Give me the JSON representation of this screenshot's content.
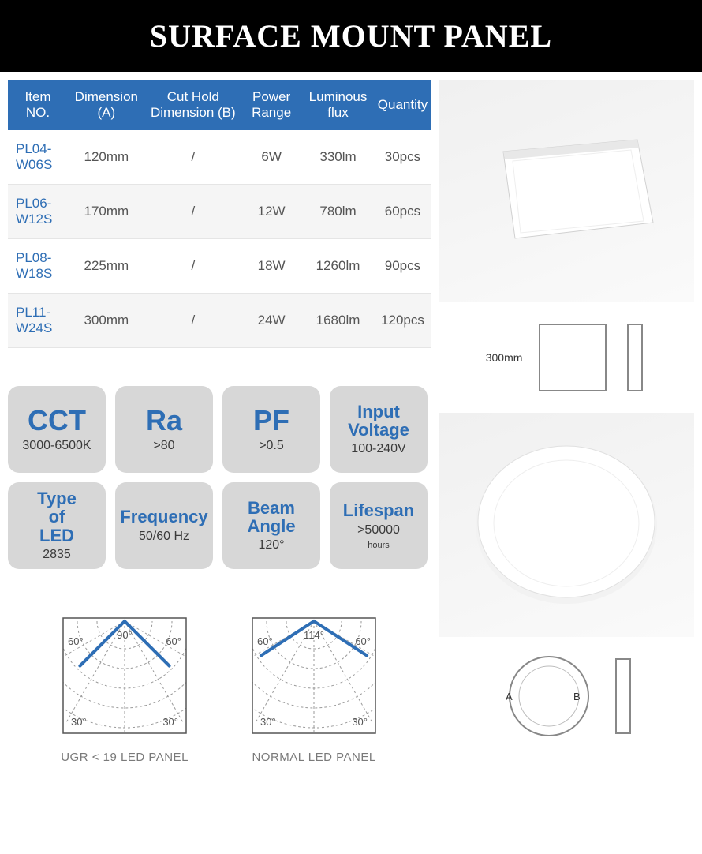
{
  "header": {
    "title": "SURFACE MOUNT PANEL"
  },
  "table": {
    "columns": [
      "Item NO.",
      "Dimension (A)",
      "Cut Hold Dimension (B)",
      "Power Range",
      "Luminous flux",
      "Quantity"
    ],
    "rows": [
      [
        "PL04-W06S",
        "120mm",
        "/",
        "6W",
        "330lm",
        "30pcs"
      ],
      [
        "PL06-W12S",
        "170mm",
        "/",
        "12W",
        "780lm",
        "60pcs"
      ],
      [
        "PL08-W18S",
        "225mm",
        "/",
        "18W",
        "1260lm",
        "90pcs"
      ],
      [
        "PL11-W24S",
        "300mm",
        "/",
        "24W",
        "1680lm",
        "120pcs"
      ]
    ],
    "header_bg": "#2e6eb5",
    "header_color": "#ffffff",
    "item_color": "#2e6eb5",
    "cell_color": "#555555",
    "row_alt_bg": "#f5f5f5"
  },
  "features": [
    {
      "title": "CCT",
      "title_size": "big",
      "value": "3000-6500K"
    },
    {
      "title": "Ra",
      "title_size": "big",
      "value": ">80"
    },
    {
      "title": "PF",
      "title_size": "big",
      "value": ">0.5"
    },
    {
      "title": "Input Voltage",
      "title_size": "med",
      "value": "100-240V"
    },
    {
      "title": "Type of LED",
      "title_size": "med",
      "value": "2835"
    },
    {
      "title": "Frequency",
      "title_size": "med",
      "value": "50/60 Hz"
    },
    {
      "title": "Beam Angle",
      "title_size": "med",
      "value": "120°"
    },
    {
      "title": "Lifespan",
      "title_size": "med",
      "value": ">50000",
      "value_sub": "hours"
    }
  ],
  "feature_style": {
    "bg": "#d7d7d7",
    "title_color": "#2e6eb5",
    "value_color": "#3a3a3a",
    "radius": 14
  },
  "polar": {
    "left": {
      "caption": "UGR < 19 LED PANEL",
      "cone_angle": 90,
      "degree_labels": [
        "60°",
        "90°",
        "60°",
        "30°",
        "30°"
      ]
    },
    "right": {
      "caption": "NORMAL LED PANEL",
      "cone_angle": 114,
      "degree_labels": [
        "60°",
        "114°",
        "60°",
        "30°",
        "30°"
      ]
    },
    "line_color": "#2e6eb5",
    "grid_color": "#9a9a9a",
    "border_color": "#555555"
  },
  "right_panel": {
    "square_dim_label": "300mm",
    "round_labels": {
      "a": "A",
      "b": "B"
    }
  }
}
